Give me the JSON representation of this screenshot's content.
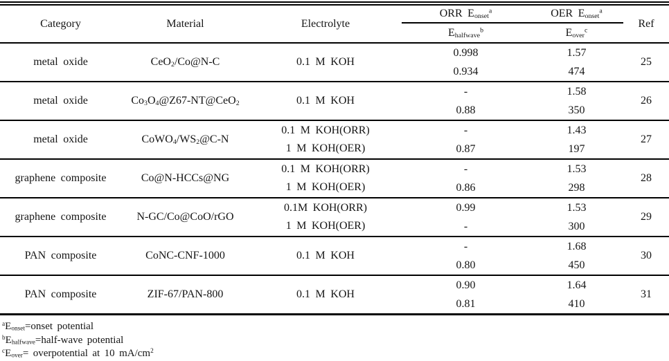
{
  "table": {
    "headers": {
      "category": "Category",
      "material": "Material",
      "electrolyte": "Electrolyte",
      "orr_top_html": "ORR E<sub>onset</sub><sup>a</sup>",
      "oer_top_html": "OER E<sub>onset</sub><sup>a</sup>",
      "orr_bottom_html": "E<sub>halfwave</sub><sup>b</sup>",
      "oer_bottom_html": "E<sub>over</sub><sup>c</sup>",
      "ref": "Ref"
    },
    "rows": [
      {
        "category": "metal oxide",
        "material_html": "CeO<sub>2</sub>/Co@N-C",
        "electrolyte": "0.1 M KOH",
        "orr_onset": "0.998",
        "orr_halfwave": "0.934",
        "oer_onset": "1.57",
        "oer_over": "474",
        "ref": "25"
      },
      {
        "category": "metal oxide",
        "material_html": "Co<sub>3</sub>O<sub>4</sub>@Z67-NT@CeO<sub>2</sub>",
        "electrolyte": "0.1 M KOH",
        "orr_onset": "-",
        "orr_halfwave": "0.88",
        "oer_onset": "1.58",
        "oer_over": "350",
        "ref": "26"
      },
      {
        "category": "metal oxide",
        "material_html": "CoWO<sub>4</sub>/WS<sub>2</sub>@C-N",
        "electrolyte": "0.1 M KOH(ORR)\n1 M KOH(OER)",
        "orr_onset": "-",
        "orr_halfwave": "0.87",
        "oer_onset": "1.43",
        "oer_over": "197",
        "ref": "27"
      },
      {
        "category": "graphene composite",
        "material_html": "Co@N-HCCs@NG",
        "electrolyte": "0.1 M KOH(ORR)\n1 M KOH(OER)",
        "orr_onset": "-",
        "orr_halfwave": "0.86",
        "oer_onset": "1.53",
        "oer_over": "298",
        "ref": "28"
      },
      {
        "category": "graphene composite",
        "material_html": "N-GC/Co@CoO/rGO",
        "electrolyte": "0.1M KOH(ORR)\n1 M KOH(OER)",
        "orr_onset": "0.99",
        "orr_halfwave": "-",
        "oer_onset": "1.53",
        "oer_over": "300",
        "ref": "29"
      },
      {
        "category": "PAN composite",
        "material_html": "CoNC-CNF-1000",
        "electrolyte": "0.1 M KOH",
        "orr_onset": "-",
        "orr_halfwave": "0.80",
        "oer_onset": "1.68",
        "oer_over": "450",
        "ref": "30"
      },
      {
        "category": "PAN composite",
        "material_html": "ZIF-67/PAN-800",
        "electrolyte": "0.1 M KOH",
        "orr_onset": "0.90",
        "orr_halfwave": "0.81",
        "oer_onset": "1.64",
        "oer_over": "410",
        "ref": "31"
      }
    ],
    "footnotes_html": [
      "<sup>a</sup>E<sub>onset</sub>=onset potential",
      "<sup>b</sup>E<sub>halfwave</sub>=half-wave potential",
      "<sup>c</sup>E<sub>over</sub>= overpotential at 10 mA/cm<sup>2</sup>"
    ]
  },
  "colors": {
    "text": "#151515",
    "rule": "#000000",
    "background": "#ffffff"
  }
}
